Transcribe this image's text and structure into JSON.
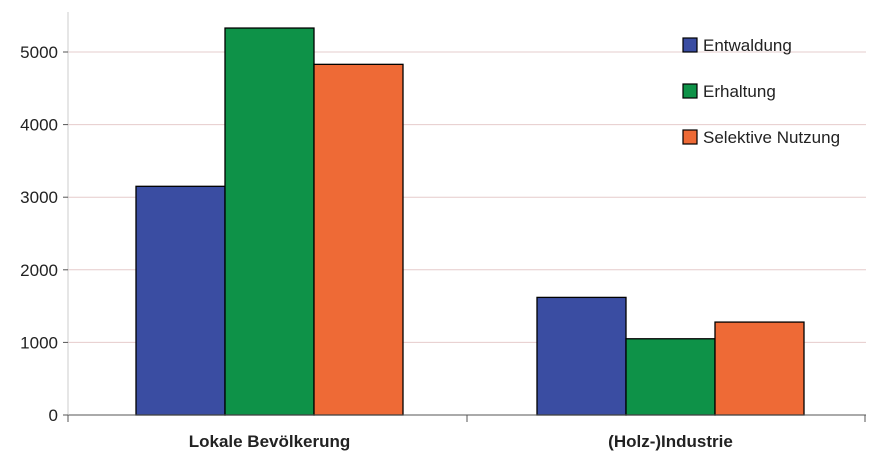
{
  "chart_data": {
    "type": "bar",
    "categories": [
      "Lokale Bevölkerung",
      "(Holz-)Industrie"
    ],
    "series": [
      {
        "name": "Entwaldung",
        "color": "#3a4da2",
        "values": [
          3150,
          1620
        ]
      },
      {
        "name": "Erhaltung",
        "color": "#0e9248",
        "values": [
          5330,
          1050
        ]
      },
      {
        "name": "Selektive Nutzung",
        "color": "#ee6a36",
        "values": [
          4830,
          1280
        ]
      }
    ],
    "y_ticks": [
      "0",
      "1000",
      "2000",
      "3000",
      "4000",
      "5000"
    ],
    "ylim": [
      0,
      5600
    ],
    "grid": "horizontal",
    "gridline_color": "#e6cccc",
    "legend_position": "top-right",
    "title": "",
    "xlabel": "",
    "ylabel": ""
  }
}
